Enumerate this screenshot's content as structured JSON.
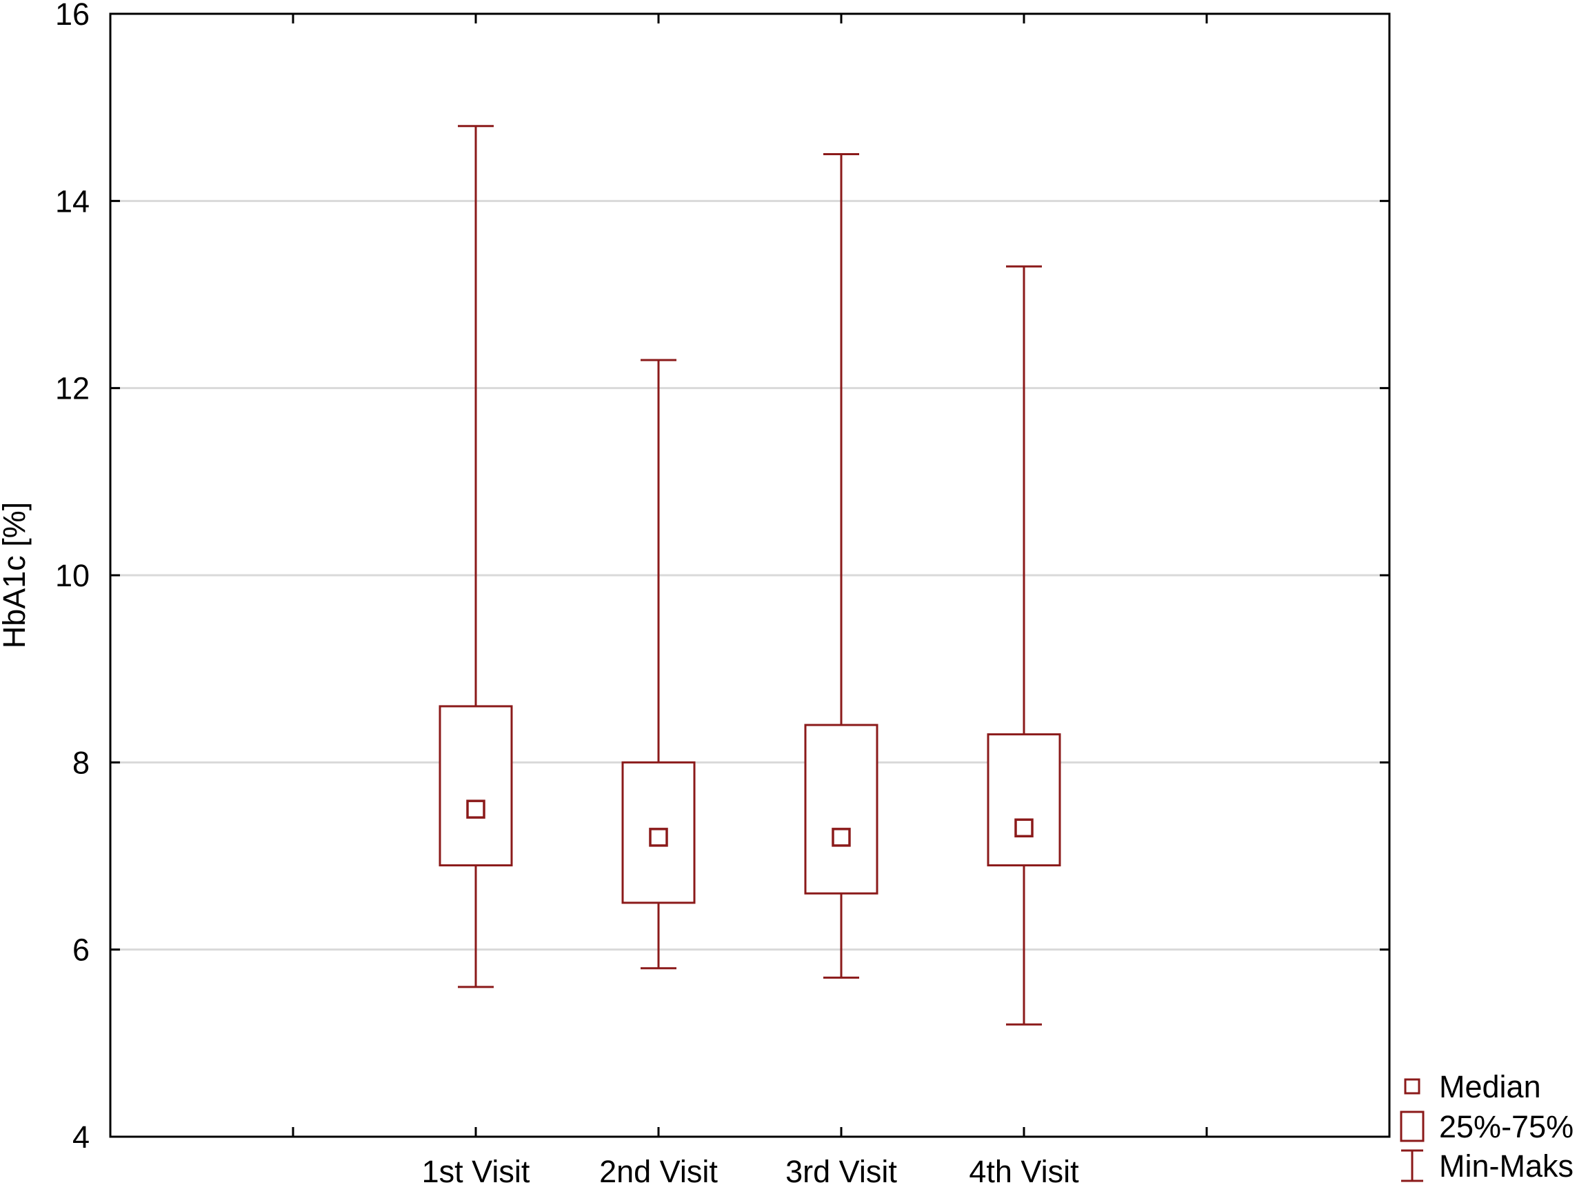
{
  "chart_data": {
    "type": "boxplot",
    "title": "",
    "xlabel": "",
    "ylabel": "HbA1c [%]",
    "ylim": [
      4,
      16
    ],
    "yticks": [
      4,
      6,
      8,
      10,
      12,
      14,
      16
    ],
    "grid": true,
    "legend_position": "bottom-right",
    "color": "#8b1a1a",
    "categories": [
      "",
      "1st Visit",
      "2nd Visit",
      "3rd Visit",
      "4th Visit",
      "",
      ""
    ],
    "boxes": [
      {
        "category": "1st Visit",
        "min": 5.6,
        "q1": 6.9,
        "median": 7.5,
        "q3": 8.6,
        "max": 14.8
      },
      {
        "category": "2nd Visit",
        "min": 5.8,
        "q1": 6.5,
        "median": 7.2,
        "q3": 8.0,
        "max": 12.3
      },
      {
        "category": "3rd Visit",
        "min": 5.7,
        "q1": 6.6,
        "median": 7.2,
        "q3": 8.4,
        "max": 14.5
      },
      {
        "category": "4th Visit",
        "min": 5.2,
        "q1": 6.9,
        "median": 7.3,
        "q3": 8.3,
        "max": 13.3
      }
    ],
    "legend": [
      {
        "symbol": "median",
        "label": "Median"
      },
      {
        "symbol": "box",
        "label": "25%-75%"
      },
      {
        "symbol": "whisker",
        "label": "Min-Maks"
      }
    ]
  }
}
